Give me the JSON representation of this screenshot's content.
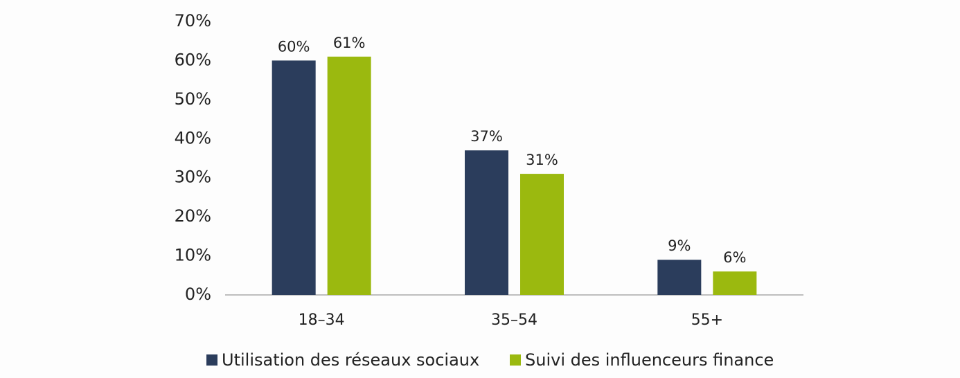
{
  "chart_data": {
    "type": "bar",
    "categories": [
      "18–34",
      "35–54",
      "55+"
    ],
    "series": [
      {
        "name": "Utilisation des réseaux sociaux",
        "color": "#2b3d5c",
        "values": [
          60,
          37,
          9
        ],
        "value_labels": [
          "60%",
          "37%",
          "9%"
        ]
      },
      {
        "name": "Suivi des influenceurs finance",
        "color": "#9bb90f",
        "values": [
          61,
          31,
          6
        ],
        "value_labels": [
          "61%",
          "31%",
          "6%"
        ]
      }
    ],
    "ylim": [
      0,
      70
    ],
    "yticks": [
      {
        "value": 0,
        "label": "0%"
      },
      {
        "value": 10,
        "label": "10%"
      },
      {
        "value": 20,
        "label": "20%"
      },
      {
        "value": 30,
        "label": "30%"
      },
      {
        "value": 40,
        "label": "40%"
      },
      {
        "value": 50,
        "label": "50%"
      },
      {
        "value": 60,
        "label": "60%"
      },
      {
        "value": 70,
        "label": "70%"
      }
    ],
    "grid": false,
    "legend": "bottom"
  }
}
